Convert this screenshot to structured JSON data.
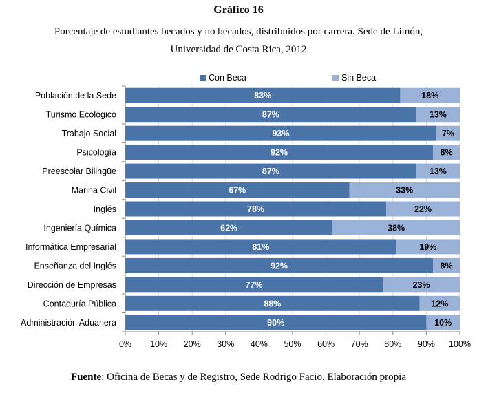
{
  "header": {
    "title": "Gráfico 16",
    "subtitle_line1": "Porcentaje de estudiantes becados y no becados, distribuidos por carrera. Sede de Limón,",
    "subtitle_line2": "Universidad de Costa Rica, 2012"
  },
  "footer": {
    "source_label": "Fuente",
    "source_text": ": Oficina de Becas y de Registro, Sede Rodrigo Facio. Elaboración propia"
  },
  "colors": {
    "con_beca": "#4a74a8",
    "sin_beca": "#9bb2d8",
    "grid": "#d9d9d9"
  },
  "chart_data": {
    "type": "bar",
    "orientation": "horizontal",
    "stacked": "percent",
    "categories": [
      "Población de la Sede",
      "Turismo Ecológico",
      "Trabajo Social",
      "Psicología",
      "Preescolar Bilingüe",
      "Marina Civil",
      "Inglés",
      "Ingeniería Química",
      "Informática Empresarial",
      "Enseñanza del Inglés",
      "Dirección de Empresas",
      "Contaduría Pública",
      "Administración Aduanera"
    ],
    "series": [
      {
        "name": "Con Beca",
        "values": [
          83,
          87,
          93,
          92,
          87,
          67,
          78,
          62,
          81,
          92,
          77,
          88,
          90
        ],
        "labels": [
          "83%",
          "87%",
          "93%",
          "92%",
          "87%",
          "67%",
          "78%",
          "62%",
          "81%",
          "92%",
          "77%",
          "88%",
          "90%"
        ]
      },
      {
        "name": "Sin Beca",
        "values": [
          18,
          13,
          7,
          8,
          13,
          33,
          22,
          38,
          19,
          8,
          23,
          12,
          10
        ],
        "labels": [
          "18%",
          "13%",
          "7%",
          "8%",
          "13%",
          "33%",
          "22%",
          "38%",
          "19%",
          "8%",
          "23%",
          "12%",
          "10%"
        ]
      }
    ],
    "x_ticks": [
      "0%",
      "10%",
      "20%",
      "30%",
      "40%",
      "50%",
      "60%",
      "70%",
      "80%",
      "90%",
      "100%"
    ],
    "xlim": [
      0,
      100
    ],
    "grid": true,
    "legend_position": "top"
  }
}
